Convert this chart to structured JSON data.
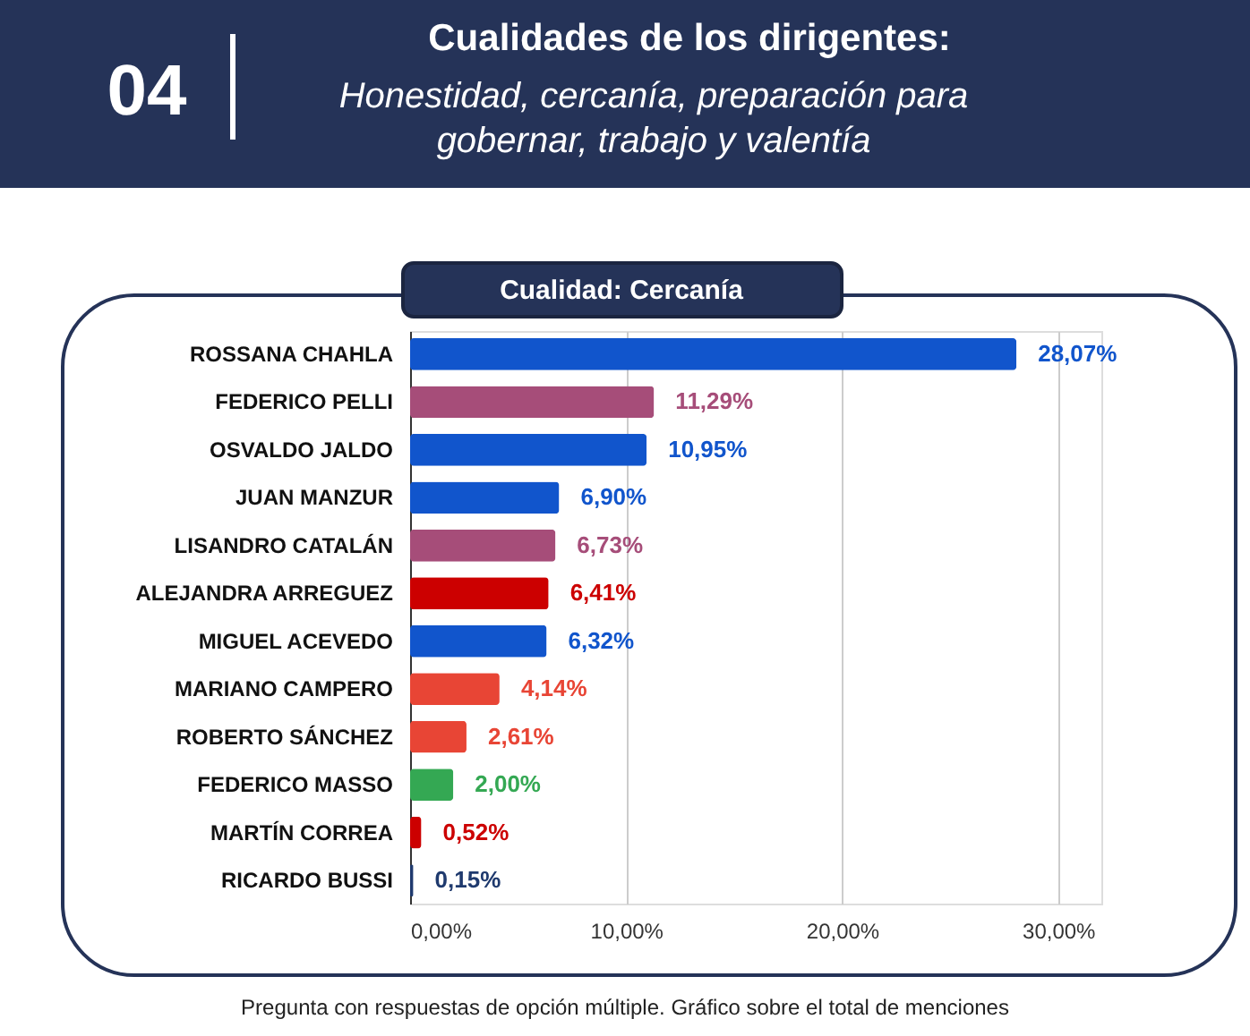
{
  "chart_data": {
    "type": "bar",
    "orientation": "horizontal",
    "title": "Cualidades de los dirigentes:",
    "subtitle": "Honestidad, cercanía, preparación para gobernar, trabajo y valentía",
    "annotations": [
      "04",
      "Cualidad: Cercanía",
      "Pregunta con respuestas de opción múltiple. Gráfico sobre el total de menciones"
    ],
    "categories": [
      "ROSSANA CHAHLA",
      "FEDERICO PELLI",
      "OSVALDO JALDO",
      "JUAN MANZUR",
      "LISANDRO CATALÁN",
      "ALEJANDRA ARREGUEZ",
      "MIGUEL ACEVEDO",
      "MARIANO CAMPERO",
      "ROBERTO SÁNCHEZ",
      "FEDERICO MASSO",
      "MARTÍN CORREA",
      "RICARDO BUSSI"
    ],
    "values": [
      28.07,
      11.29,
      10.95,
      6.9,
      6.73,
      6.41,
      6.32,
      4.14,
      2.61,
      2.0,
      0.52,
      0.15
    ],
    "value_labels": [
      "28,07%",
      "11,29%",
      "10,95%",
      "6,90%",
      "6,73%",
      "6,41%",
      "6,32%",
      "4,14%",
      "2,61%",
      "2,00%",
      "0,52%",
      "0,15%"
    ],
    "colors": [
      "#1155cc",
      "#a64d79",
      "#1155cc",
      "#1155cc",
      "#a64d79",
      "#cc0000",
      "#1155cc",
      "#e84535",
      "#e84535",
      "#34a853",
      "#cc0000",
      "#1f3a6e"
    ],
    "xlim": [
      0,
      32
    ],
    "xticks": [
      {
        "value": 0,
        "label": "0,00%"
      },
      {
        "value": 10,
        "label": "10,00%"
      },
      {
        "value": 20,
        "label": "20,00%"
      },
      {
        "value": 30,
        "label": "30,00%"
      }
    ],
    "grid": "x"
  }
}
